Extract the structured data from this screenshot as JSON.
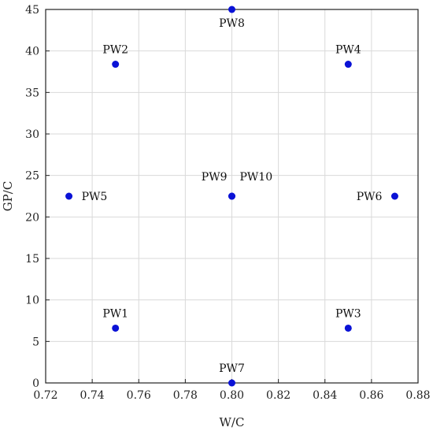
{
  "chart_data": {
    "type": "scatter",
    "xlabel": "W/C",
    "ylabel": "GP/C",
    "xlim": [
      0.72,
      0.88
    ],
    "ylim": [
      0,
      45
    ],
    "xticks": [
      "0.72",
      "0.74",
      "0.76",
      "0.78",
      "0.80",
      "0.82",
      "0.84",
      "0.86",
      "0.88"
    ],
    "yticks": [
      "0",
      "5",
      "10",
      "15",
      "20",
      "25",
      "30",
      "35",
      "40",
      "45"
    ],
    "grid": true,
    "marker_color": "#0a12d6",
    "points": [
      {
        "label": "PW1",
        "x": 0.75,
        "y": 6.6
      },
      {
        "label": "PW2",
        "x": 0.75,
        "y": 38.4
      },
      {
        "label": "PW3",
        "x": 0.85,
        "y": 6.6
      },
      {
        "label": "PW4",
        "x": 0.85,
        "y": 38.4
      },
      {
        "label": "PW5",
        "x": 0.73,
        "y": 22.5
      },
      {
        "label": "PW6",
        "x": 0.87,
        "y": 22.5
      },
      {
        "label": "PW7",
        "x": 0.8,
        "y": 0
      },
      {
        "label": "PW8",
        "x": 0.8,
        "y": 45
      },
      {
        "label": "PW9",
        "x": 0.8,
        "y": 22.5
      },
      {
        "label": "PW10",
        "x": 0.8,
        "y": 22.5
      }
    ]
  }
}
